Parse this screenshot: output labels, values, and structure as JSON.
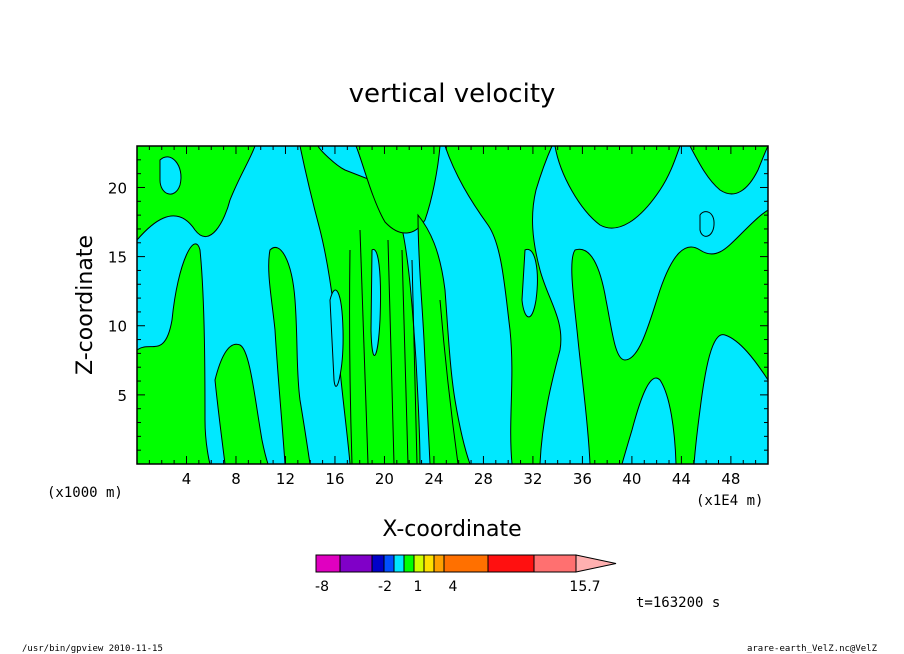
{
  "chart_data": {
    "type": "heatmap",
    "title": "vertical velocity",
    "xlabel": "X-coordinate",
    "ylabel": "Z-coordinate",
    "x_unit_left": "(x1000 m)",
    "x_unit_right": "(x1E4 m)",
    "xlim": [
      0,
      51
    ],
    "ylim": [
      0,
      23
    ],
    "x_ticks": [
      "4",
      "8",
      "12",
      "16",
      "20",
      "24",
      "28",
      "32",
      "36",
      "40",
      "44",
      "48"
    ],
    "x_tick_values": [
      4,
      8,
      12,
      16,
      20,
      24,
      28,
      32,
      36,
      40,
      44,
      48
    ],
    "y_ticks": [
      "5",
      "10",
      "15",
      "20"
    ],
    "y_tick_values": [
      5,
      10,
      15,
      20
    ],
    "fill_colors": {
      "negative": "#00e8ff",
      "positive": "#00ff00"
    },
    "colorbar": {
      "levels_labeled": [
        "-8",
        "-2",
        "1",
        "4",
        "15.7"
      ],
      "colors": [
        "#e000c0",
        "#8000c8",
        "#0000c8",
        "#0050ff",
        "#00e8ff",
        "#00ff00",
        "#d0ff00",
        "#ffe000",
        "#ffa000",
        "#ff7000",
        "#ff1010",
        "#ff7070",
        "#ffb0b0"
      ]
    },
    "time_label": "t=163200 s",
    "footer_left": "/usr/bin/gpview   2010-11-15",
    "footer_right": "arare-earth_VelZ.nc@VelZ"
  }
}
